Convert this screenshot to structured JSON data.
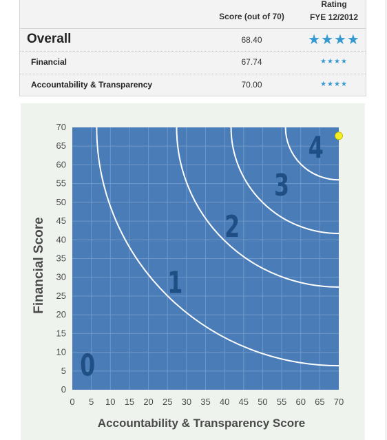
{
  "table": {
    "header": {
      "score": "Score (out of 70)",
      "rating_line1": "Rating",
      "rating_line2": "FYE 12/2012"
    },
    "rows": [
      {
        "label": "Overall",
        "score": "68.40",
        "stars": "★★★★",
        "star_count": 4
      },
      {
        "label": "Financial",
        "score": "67.74",
        "stars": "★★★★",
        "star_count": 4
      },
      {
        "label": "Accountability & Transparency",
        "score": "70.00",
        "stars": "★★★★",
        "star_count": 4
      }
    ],
    "star_color": "#3598d0"
  },
  "chart_data": {
    "type": "scatter",
    "title": "",
    "xlabel": "Accountability & Transparency Score",
    "ylabel": "Financial Score",
    "xlim": [
      0,
      70
    ],
    "ylim": [
      0,
      70
    ],
    "ticks": [
      0,
      5,
      10,
      15,
      20,
      25,
      30,
      35,
      40,
      45,
      50,
      55,
      60,
      65,
      70
    ],
    "grid": true,
    "points": [
      {
        "x": 70.0,
        "y": 67.74
      }
    ],
    "arcs": [
      {
        "center": [
          70,
          70
        ],
        "radius": 63.6
      },
      {
        "center": [
          70,
          70
        ],
        "radius": 42.6
      },
      {
        "center": [
          70,
          70
        ],
        "radius": 28.3
      },
      {
        "center": [
          70,
          70
        ],
        "radius": 14.0
      }
    ],
    "zones": [
      {
        "label": "0",
        "x": 4,
        "y": 6
      },
      {
        "label": "1",
        "x": 27,
        "y": 28
      },
      {
        "label": "2",
        "x": 42,
        "y": 43
      },
      {
        "label": "3",
        "x": 55,
        "y": 54
      },
      {
        "label": "4",
        "x": 64,
        "y": 64
      }
    ],
    "colors": {
      "plot_bg": "#4a7db8",
      "grid": "#6e97c7",
      "arc": "#ffffff",
      "zone_label": "#1f4f85",
      "point": "#f4ef22",
      "axis_text": "#4a4a4a"
    }
  }
}
